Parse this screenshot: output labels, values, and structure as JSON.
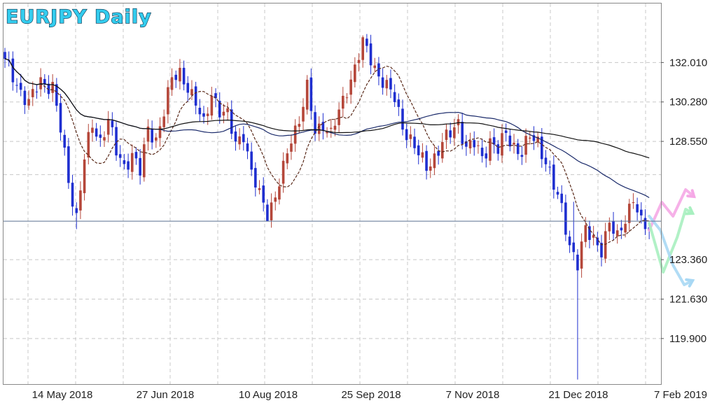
{
  "chart_data": {
    "type": "candlestick",
    "title": "EURJPY  Daily",
    "symbol": "EURJPY",
    "timeframe": "Daily",
    "y_ticks": [
      "132.010",
      "130.280",
      "128.550",
      "123.360",
      "121.630",
      "119.900"
    ],
    "y_tick_values": [
      132.01,
      130.28,
      128.55,
      123.36,
      121.63,
      119.9
    ],
    "x_ticks": [
      "14 May 2018",
      "27 Jun 2018",
      "10 Aug 2018",
      "25 Sep 2018",
      "7 Nov 2018",
      "21 Dec 2018",
      "7 Feb 2019"
    ],
    "ylim": [
      117.9,
      134.6
    ],
    "grid": true,
    "horizontal_line": 125.05,
    "colors": {
      "bull": "#b5473a",
      "bear": "#1f2fd0",
      "ma_fast": "#5a2a1a",
      "ma_mid": "#1a2a6a",
      "ma_slow": "#111111",
      "hline": "#5a7090",
      "grid": "#c8c8c8",
      "forecast_pink": "#f5a8e6",
      "forecast_green": "#a8f0c0",
      "forecast_blue": "#a8d8f4"
    },
    "close_anchors": [
      [
        0,
        132.0
      ],
      [
        3,
        131.1
      ],
      [
        6,
        130.2
      ],
      [
        9,
        131.2
      ],
      [
        12,
        131.0
      ],
      [
        14,
        129.0
      ],
      [
        16,
        126.8
      ],
      [
        18,
        125.3
      ],
      [
        20,
        127.8
      ],
      [
        22,
        129.2
      ],
      [
        24,
        128.6
      ],
      [
        26,
        129.6
      ],
      [
        28,
        128.0
      ],
      [
        30,
        127.4
      ],
      [
        32,
        128.1
      ],
      [
        34,
        127.2
      ],
      [
        36,
        129.0
      ],
      [
        38,
        128.7
      ],
      [
        40,
        129.9
      ],
      [
        42,
        131.2
      ],
      [
        44,
        131.6
      ],
      [
        46,
        131.0
      ],
      [
        48,
        130.1
      ],
      [
        50,
        129.3
      ],
      [
        52,
        130.8
      ],
      [
        54,
        129.8
      ],
      [
        56,
        129.6
      ],
      [
        58,
        128.6
      ],
      [
        60,
        128.9
      ],
      [
        62,
        127.0
      ],
      [
        64,
        126.3
      ],
      [
        66,
        125.5
      ],
      [
        68,
        126.0
      ],
      [
        70,
        127.3
      ],
      [
        72,
        128.8
      ],
      [
        74,
        129.5
      ],
      [
        76,
        130.8
      ],
      [
        78,
        129.0
      ],
      [
        80,
        129.4
      ],
      [
        82,
        128.8
      ],
      [
        84,
        129.8
      ],
      [
        86,
        130.9
      ],
      [
        88,
        131.8
      ],
      [
        90,
        132.8
      ],
      [
        92,
        132.2
      ],
      [
        94,
        131.5
      ],
      [
        96,
        130.9
      ],
      [
        98,
        130.4
      ],
      [
        100,
        129.3
      ],
      [
        102,
        128.6
      ],
      [
        104,
        127.9
      ],
      [
        106,
        127.5
      ],
      [
        108,
        127.9
      ],
      [
        110,
        128.4
      ],
      [
        112,
        128.9
      ],
      [
        114,
        129.5
      ],
      [
        116,
        128.2
      ],
      [
        118,
        128.4
      ],
      [
        120,
        127.9
      ],
      [
        122,
        128.6
      ],
      [
        124,
        128.1
      ],
      [
        126,
        128.9
      ],
      [
        128,
        128.4
      ],
      [
        130,
        128.0
      ],
      [
        132,
        128.7
      ],
      [
        134,
        128.6
      ],
      [
        136,
        127.7
      ],
      [
        138,
        126.5
      ],
      [
        140,
        125.6
      ],
      [
        142,
        124.1
      ],
      [
        144,
        123.1
      ],
      [
        146,
        124.6
      ],
      [
        148,
        124.4
      ],
      [
        150,
        123.8
      ],
      [
        152,
        124.8
      ],
      [
        154,
        124.4
      ],
      [
        156,
        125.3
      ],
      [
        158,
        125.9
      ],
      [
        160,
        124.9
      ]
    ],
    "marked_points": [
      {
        "i": 18,
        "low": 124.7
      },
      {
        "i": 66,
        "low": 125.2
      },
      {
        "i": 90,
        "high": 133.2
      },
      {
        "i": 143,
        "high": 125.9
      },
      {
        "i": 144,
        "low": 118.1
      }
    ]
  }
}
